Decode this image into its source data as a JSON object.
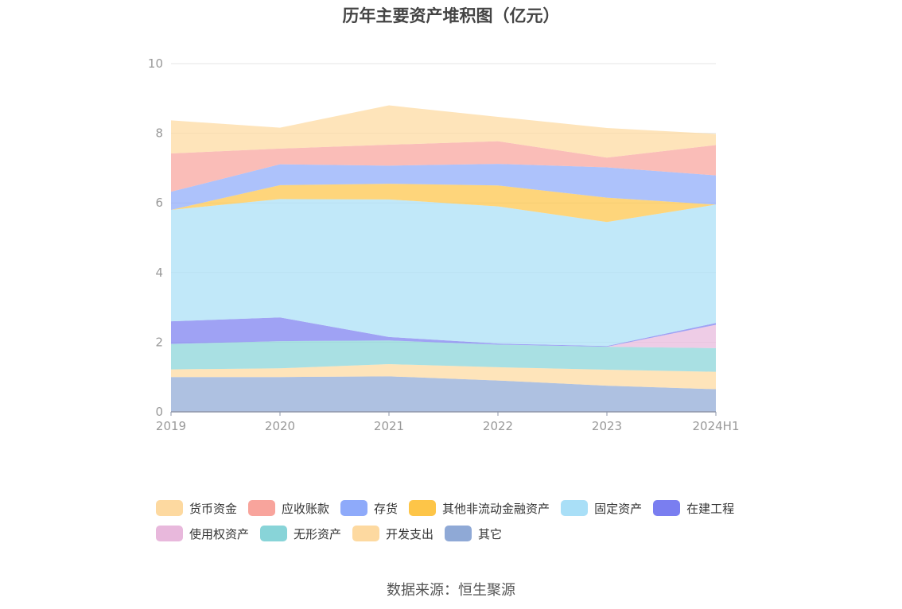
{
  "chart_data": {
    "type": "area",
    "stacked": true,
    "title": "历年主要资产堆积图（亿元）",
    "xlabel": "",
    "ylabel": "",
    "x": [
      "2019",
      "2020",
      "2021",
      "2022",
      "2023",
      "2024H1"
    ],
    "ylim": [
      0,
      10
    ],
    "yticks": [
      0,
      2,
      4,
      6,
      8,
      10
    ],
    "grid": true,
    "legend_position": "bottom",
    "series": [
      {
        "name": "其它",
        "color": "#8fa9d6",
        "values": [
          1.0,
          1.0,
          1.02,
          0.9,
          0.75,
          0.65
        ]
      },
      {
        "name": "开发支出",
        "color": "#fdd9a0",
        "values": [
          0.22,
          0.25,
          0.35,
          0.38,
          0.46,
          0.5
        ]
      },
      {
        "name": "无形资产",
        "color": "#88d4d8",
        "values": [
          0.73,
          0.78,
          0.68,
          0.65,
          0.66,
          0.68
        ]
      },
      {
        "name": "使用权资产",
        "color": "#e8b8dc",
        "values": [
          0.0,
          0.0,
          0.0,
          0.0,
          0.0,
          0.67
        ]
      },
      {
        "name": "在建工程",
        "color": "#7a7ef0",
        "values": [
          0.65,
          0.68,
          0.1,
          0.03,
          0.02,
          0.05
        ]
      },
      {
        "name": "固定资产",
        "color": "#a9dff7",
        "values": [
          3.2,
          3.4,
          3.95,
          3.94,
          3.56,
          3.4
        ]
      },
      {
        "name": "其他非流动金融资产",
        "color": "#fdc548",
        "values": [
          0.0,
          0.4,
          0.45,
          0.6,
          0.7,
          0.0
        ]
      },
      {
        "name": "存货",
        "color": "#8eaafa",
        "values": [
          0.52,
          0.6,
          0.52,
          0.62,
          0.87,
          0.84
        ]
      },
      {
        "name": "应收账款",
        "color": "#f8a49c",
        "values": [
          1.1,
          0.45,
          0.6,
          0.65,
          0.28,
          0.87
        ]
      },
      {
        "name": "货币资金",
        "color": "#fdd9a0",
        "values": [
          0.95,
          0.6,
          1.13,
          0.7,
          0.85,
          0.32
        ]
      }
    ],
    "legend_order": [
      "货币资金",
      "应收账款",
      "存货",
      "其他非流动金融资产",
      "固定资产",
      "在建工程",
      "使用权资产",
      "无形资产",
      "开发支出",
      "其它"
    ]
  },
  "source_text": "数据来源：恒生聚源"
}
